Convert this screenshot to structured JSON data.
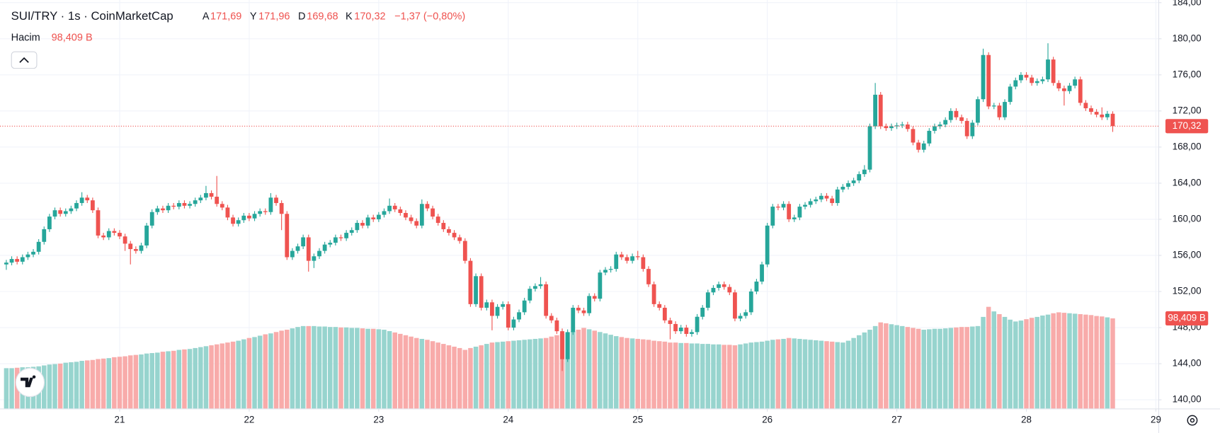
{
  "chart_data": {
    "type": "candlestick",
    "title": "SUI/TRY · 1s · CoinMarketCap",
    "ohlc_legend": [
      {
        "name": "A",
        "value_label": "171,69"
      },
      {
        "name": "Y",
        "value_label": "171,96"
      },
      {
        "name": "D",
        "value_label": "169,68"
      },
      {
        "name": "K",
        "value_label": "170,32"
      }
    ],
    "change_label": "−1,37 (−0,80%)",
    "volume_name": "Hacim",
    "last_volume": {
      "value": 98.409,
      "label": "98,409 B"
    },
    "last_price": {
      "value": 170.32,
      "label": "170,32"
    },
    "up_color": "#26a69a",
    "down_color": "#ef5350",
    "volume_up_color": "#97d4ce",
    "volume_down_color": "#f8abaa",
    "grid": true,
    "xlim": [
      -1.17,
      213.45
    ],
    "xticks": [
      {
        "value": 21,
        "label": "21"
      },
      {
        "value": 45,
        "label": "22"
      },
      {
        "value": 69,
        "label": "23"
      },
      {
        "value": 93,
        "label": "24"
      },
      {
        "value": 117,
        "label": "25"
      },
      {
        "value": 141,
        "label": "26"
      },
      {
        "value": 165,
        "label": "27"
      },
      {
        "value": 189,
        "label": "28"
      },
      {
        "value": 213,
        "label": "29"
      }
    ],
    "ylim": [
      139.04,
      184.29
    ],
    "yticks": [
      {
        "value": 140,
        "label": "140,00"
      },
      {
        "value": 144,
        "label": "144,00"
      },
      {
        "value": 148,
        "label": "148,00"
      },
      {
        "value": 152,
        "label": "152,00"
      },
      {
        "value": 156,
        "label": "156,00"
      },
      {
        "value": 160,
        "label": "160,00"
      },
      {
        "value": 164,
        "label": "164,00"
      },
      {
        "value": 168,
        "label": "168,00"
      },
      {
        "value": 172,
        "label": "172,00"
      },
      {
        "value": 176,
        "label": "176,00"
      },
      {
        "value": 180,
        "label": "180,00"
      },
      {
        "value": 184,
        "label": "184,00"
      }
    ],
    "y2lim": [
      0,
      446
    ],
    "open": [
      155.0,
      155.2,
      155.6,
      155.3,
      155.8,
      156.1,
      156.4,
      157.5,
      158.9,
      160.3,
      161.0,
      160.6,
      160.9,
      161.2,
      161.8,
      162.4,
      162.1,
      161.0,
      158.2,
      158.0,
      158.7,
      158.5,
      158.1,
      157.3,
      156.7,
      156.5,
      157.1,
      159.3,
      160.8,
      161.2,
      161.0,
      161.5,
      161.4,
      161.8,
      161.5,
      161.7,
      162.1,
      162.4,
      162.9,
      162.5,
      161.7,
      161.3,
      160.2,
      159.5,
      159.9,
      160.4,
      160.1,
      160.6,
      160.9,
      160.8,
      162.4,
      161.8,
      160.6,
      155.8,
      156.5,
      157.0,
      158.0,
      155.4,
      155.9,
      156.5,
      157.2,
      157.4,
      158.0,
      157.9,
      158.5,
      158.8,
      159.6,
      159.3,
      160.2,
      160.0,
      160.5,
      160.9,
      161.5,
      161.1,
      160.7,
      160.2,
      159.8,
      159.3,
      161.7,
      161.2,
      160.3,
      159.6,
      158.9,
      158.5,
      158.0,
      157.6,
      155.4,
      150.6,
      153.7,
      150.2,
      150.8,
      149.3,
      150.3,
      150.6,
      148.0,
      148.9,
      149.7,
      151.0,
      152.3,
      152.6,
      152.8,
      149.3,
      148.8,
      147.6,
      144.5,
      147.5,
      150.2,
      149.9,
      149.6,
      151.5,
      151.2,
      154.1,
      154.4,
      154.5,
      156.1,
      155.8,
      155.4,
      155.9,
      155.8,
      154.5,
      152.8,
      150.6,
      150.2,
      148.8,
      148.4,
      147.6,
      148.0,
      147.3,
      147.5,
      149.2,
      150.2,
      151.9,
      152.4,
      152.8,
      152.5,
      151.9,
      149.0,
      149.3,
      149.7,
      152.0,
      153.1,
      155.0,
      159.3,
      161.4,
      161.3,
      161.7,
      160.0,
      160.2,
      161.4,
      161.6,
      162.0,
      162.2,
      162.6,
      162.3,
      161.8,
      163.3,
      163.6,
      164.0,
      164.3,
      165.0,
      165.5,
      170.3,
      173.8,
      170.3,
      170.1,
      170.3,
      170.4,
      170.5,
      170.0,
      168.5,
      167.7,
      168.4,
      169.8,
      170.3,
      170.5,
      171.0,
      172.0,
      171.3,
      170.9,
      169.2,
      170.7,
      173.3,
      178.2,
      172.5,
      172.6,
      171.3,
      173.0,
      174.7,
      175.4,
      176.0,
      175.7,
      175.1,
      175.3,
      175.5,
      177.7,
      175.1,
      174.5,
      174.2,
      174.8,
      175.5,
      172.9,
      172.3,
      171.9,
      171.6,
      171.3,
      171.69
    ],
    "high": [
      155.5,
      155.9,
      155.9,
      156.1,
      156.4,
      156.7,
      157.8,
      159.2,
      160.6,
      161.3,
      161.3,
      161.2,
      161.5,
      162.1,
      163.0,
      162.7,
      162.4,
      161.3,
      158.5,
      159.0,
      159.0,
      158.8,
      158.4,
      157.6,
      157.0,
      157.4,
      159.6,
      161.1,
      161.5,
      161.5,
      161.8,
      161.8,
      162.1,
      162.1,
      162.0,
      162.4,
      162.7,
      163.7,
      163.2,
      164.8,
      162.0,
      161.6,
      160.5,
      160.2,
      160.7,
      160.7,
      160.9,
      161.2,
      161.2,
      162.9,
      162.7,
      162.1,
      160.9,
      156.8,
      157.3,
      158.3,
      158.3,
      156.2,
      156.8,
      157.5,
      157.7,
      158.3,
      158.3,
      158.8,
      159.1,
      159.9,
      159.9,
      160.5,
      160.5,
      160.8,
      161.2,
      162.3,
      161.8,
      161.4,
      161.0,
      160.5,
      160.1,
      162.2,
      162.0,
      161.5,
      160.6,
      159.9,
      159.2,
      158.8,
      158.3,
      157.9,
      155.7,
      154.0,
      154.0,
      151.1,
      151.1,
      150.6,
      150.9,
      150.9,
      149.2,
      150.0,
      151.3,
      152.6,
      152.9,
      153.6,
      153.1,
      149.6,
      149.1,
      147.9,
      147.8,
      150.5,
      150.5,
      150.2,
      151.8,
      151.8,
      154.4,
      154.7,
      154.8,
      156.4,
      156.4,
      156.1,
      156.2,
      156.5,
      156.1,
      154.8,
      153.1,
      150.9,
      150.5,
      149.1,
      148.7,
      148.3,
      148.3,
      147.8,
      149.5,
      150.5,
      152.2,
      152.7,
      153.1,
      153.1,
      152.8,
      152.2,
      149.6,
      150.0,
      152.3,
      153.4,
      155.3,
      159.6,
      161.7,
      161.7,
      162.0,
      162.0,
      160.5,
      161.7,
      161.9,
      162.3,
      162.5,
      162.9,
      162.9,
      162.6,
      163.6,
      163.9,
      164.3,
      164.6,
      165.3,
      166.0,
      170.6,
      175.1,
      174.1,
      170.6,
      170.6,
      170.7,
      170.8,
      170.8,
      170.3,
      168.8,
      168.7,
      170.1,
      170.6,
      170.8,
      171.3,
      172.3,
      172.3,
      171.6,
      171.2,
      171.0,
      173.6,
      178.9,
      178.5,
      172.9,
      172.9,
      173.3,
      175.0,
      175.7,
      176.3,
      176.3,
      176.0,
      175.6,
      175.8,
      179.5,
      178.0,
      175.4,
      174.8,
      175.1,
      175.8,
      175.8,
      173.2,
      172.6,
      172.2,
      172.4,
      172.0,
      171.96
    ],
    "low": [
      154.4,
      154.9,
      155.0,
      155.0,
      155.5,
      155.8,
      156.1,
      157.2,
      158.6,
      160.0,
      160.3,
      160.3,
      160.6,
      160.9,
      161.5,
      161.8,
      160.7,
      157.9,
      157.7,
      157.7,
      158.2,
      157.8,
      156.5,
      155.0,
      156.2,
      156.2,
      156.8,
      159.0,
      160.5,
      160.7,
      160.7,
      161.1,
      161.1,
      161.2,
      161.2,
      161.4,
      161.8,
      162.1,
      162.2,
      161.4,
      161.0,
      159.9,
      159.2,
      159.2,
      159.6,
      159.8,
      159.8,
      160.3,
      160.5,
      160.5,
      161.5,
      158.8,
      155.5,
      155.5,
      156.2,
      156.7,
      154.2,
      154.6,
      155.6,
      156.2,
      156.9,
      157.1,
      157.6,
      157.6,
      158.2,
      158.5,
      159.0,
      159.0,
      159.7,
      159.7,
      160.2,
      160.6,
      160.8,
      160.4,
      159.9,
      159.5,
      159.0,
      159.0,
      160.9,
      160.0,
      159.3,
      158.6,
      158.2,
      157.7,
      157.3,
      155.1,
      150.3,
      150.3,
      149.9,
      149.9,
      147.7,
      149.0,
      150.0,
      147.7,
      147.7,
      148.6,
      149.4,
      150.7,
      152.0,
      152.3,
      149.0,
      148.5,
      147.3,
      143.2,
      144.2,
      147.2,
      149.6,
      149.3,
      149.3,
      150.9,
      150.9,
      153.8,
      154.1,
      154.2,
      155.5,
      155.1,
      155.1,
      155.5,
      154.2,
      152.5,
      150.3,
      149.9,
      148.5,
      146.7,
      147.3,
      147.3,
      147.0,
      147.0,
      147.2,
      148.9,
      149.9,
      151.6,
      152.1,
      152.2,
      151.6,
      148.7,
      148.7,
      149.0,
      149.4,
      151.7,
      152.8,
      154.7,
      159.0,
      161.0,
      161.0,
      159.7,
      159.7,
      159.9,
      161.1,
      161.3,
      161.7,
      161.9,
      162.0,
      161.5,
      161.5,
      163.0,
      163.3,
      163.7,
      164.0,
      164.7,
      165.2,
      170.0,
      170.0,
      169.8,
      169.8,
      170.0,
      170.1,
      169.7,
      168.2,
      167.4,
      167.4,
      168.1,
      169.5,
      170.0,
      170.2,
      170.7,
      171.0,
      170.6,
      168.9,
      168.9,
      170.4,
      173.0,
      172.2,
      172.2,
      171.0,
      171.0,
      172.7,
      174.4,
      175.1,
      175.4,
      174.8,
      174.8,
      175.0,
      175.2,
      174.8,
      174.2,
      172.6,
      173.9,
      174.5,
      172.6,
      172.0,
      171.6,
      171.3,
      171.0,
      171.0,
      169.68
    ],
    "close": [
      155.2,
      155.6,
      155.3,
      155.8,
      156.1,
      156.4,
      157.5,
      158.9,
      160.3,
      161.0,
      160.6,
      160.9,
      161.2,
      161.8,
      162.4,
      162.1,
      161.0,
      158.2,
      158.0,
      158.7,
      158.5,
      158.1,
      157.3,
      156.7,
      156.5,
      157.1,
      159.3,
      160.8,
      161.2,
      161.0,
      161.5,
      161.4,
      161.8,
      161.5,
      161.7,
      162.1,
      162.4,
      162.9,
      162.5,
      161.7,
      161.3,
      160.2,
      159.5,
      159.9,
      160.4,
      160.1,
      160.6,
      160.9,
      160.8,
      162.4,
      161.8,
      160.6,
      155.8,
      156.5,
      157.0,
      158.0,
      155.4,
      155.9,
      156.5,
      157.2,
      157.4,
      158.0,
      157.9,
      158.5,
      158.8,
      159.6,
      159.3,
      160.2,
      160.0,
      160.5,
      160.9,
      161.5,
      161.1,
      160.7,
      160.2,
      159.8,
      159.3,
      161.7,
      161.2,
      160.3,
      159.6,
      158.9,
      158.5,
      158.0,
      157.6,
      155.4,
      150.6,
      153.7,
      150.2,
      150.8,
      149.3,
      150.3,
      150.6,
      148.0,
      148.9,
      149.7,
      151.0,
      152.3,
      152.6,
      152.8,
      149.3,
      148.8,
      147.6,
      144.5,
      147.5,
      150.2,
      149.9,
      149.6,
      151.5,
      151.2,
      154.1,
      154.4,
      154.5,
      156.1,
      155.8,
      155.4,
      155.9,
      155.8,
      154.5,
      152.8,
      150.6,
      150.2,
      148.8,
      148.4,
      147.6,
      148.0,
      147.3,
      147.5,
      149.2,
      150.2,
      151.9,
      152.4,
      152.8,
      152.5,
      151.9,
      149.0,
      149.3,
      149.7,
      152.0,
      153.1,
      155.0,
      159.3,
      161.4,
      161.3,
      161.7,
      160.0,
      160.2,
      161.4,
      161.6,
      162.0,
      162.2,
      162.6,
      162.3,
      161.8,
      163.3,
      163.6,
      164.0,
      164.3,
      165.0,
      165.5,
      170.3,
      173.8,
      170.3,
      170.1,
      170.3,
      170.4,
      170.5,
      170.0,
      168.5,
      167.7,
      168.4,
      169.8,
      170.3,
      170.5,
      171.0,
      172.0,
      171.3,
      170.9,
      169.2,
      170.7,
      173.3,
      178.2,
      172.5,
      172.6,
      171.3,
      173.0,
      174.7,
      175.4,
      176.0,
      175.7,
      175.1,
      175.3,
      175.5,
      177.7,
      175.1,
      174.5,
      174.2,
      174.8,
      175.5,
      172.9,
      172.3,
      171.9,
      171.6,
      171.3,
      171.69,
      170.32
    ],
    "volume": [
      44,
      44,
      44.5,
      45,
      45,
      45.5,
      46,
      47,
      48,
      48.5,
      49,
      50,
      50.5,
      51,
      52,
      52.5,
      53,
      54,
      54.5,
      55,
      56,
      56.5,
      57,
      58,
      58.5,
      59,
      60,
      60.5,
      61,
      62,
      62.5,
      63,
      64,
      64.5,
      65,
      66,
      67,
      68,
      69,
      70,
      71,
      72,
      73,
      74,
      75.5,
      77,
      78,
      79.5,
      81,
      82,
      83.5,
      85,
      86,
      87.5,
      89,
      90,
      90,
      90,
      89.5,
      89.5,
      89,
      89,
      88.5,
      88.5,
      88,
      88,
      87.5,
      87,
      87,
      86.5,
      86,
      84.5,
      83,
      81.5,
      80,
      78.5,
      77,
      76,
      75,
      73.5,
      72,
      70.5,
      69,
      67.5,
      66,
      64,
      66,
      67.5,
      69,
      70.5,
      72,
      72.5,
      73,
      73.5,
      74,
      74.5,
      75,
      75.5,
      76,
      76.5,
      77,
      78.5,
      80,
      81.5,
      83,
      84.5,
      86,
      88,
      86.5,
      85,
      83.5,
      82,
      80.5,
      79,
      78,
      77,
      76.5,
      76,
      75.5,
      75,
      74,
      73.5,
      73,
      72,
      72,
      71.5,
      71.5,
      71,
      71,
      70.5,
      70.5,
      70,
      70,
      69.5,
      69.5,
      69,
      70,
      71,
      72,
      72.5,
      73,
      74,
      75,
      75.5,
      76,
      77,
      76.5,
      76,
      75.5,
      75,
      74.5,
      74,
      73.5,
      73,
      72.5,
      72,
      74,
      77,
      80,
      83,
      86,
      90,
      94,
      93,
      92,
      91,
      90,
      89,
      88,
      87,
      86,
      86.5,
      87,
      87,
      87.5,
      88,
      88.5,
      89,
      89,
      89.5,
      90,
      100,
      111,
      106,
      103,
      100,
      97,
      95,
      96,
      97.5,
      99,
      100,
      101.5,
      102.5,
      104,
      105,
      104.5,
      104,
      103.5,
      103,
      102.5,
      102,
      101,
      100.5,
      99.5,
      98.409
    ]
  }
}
